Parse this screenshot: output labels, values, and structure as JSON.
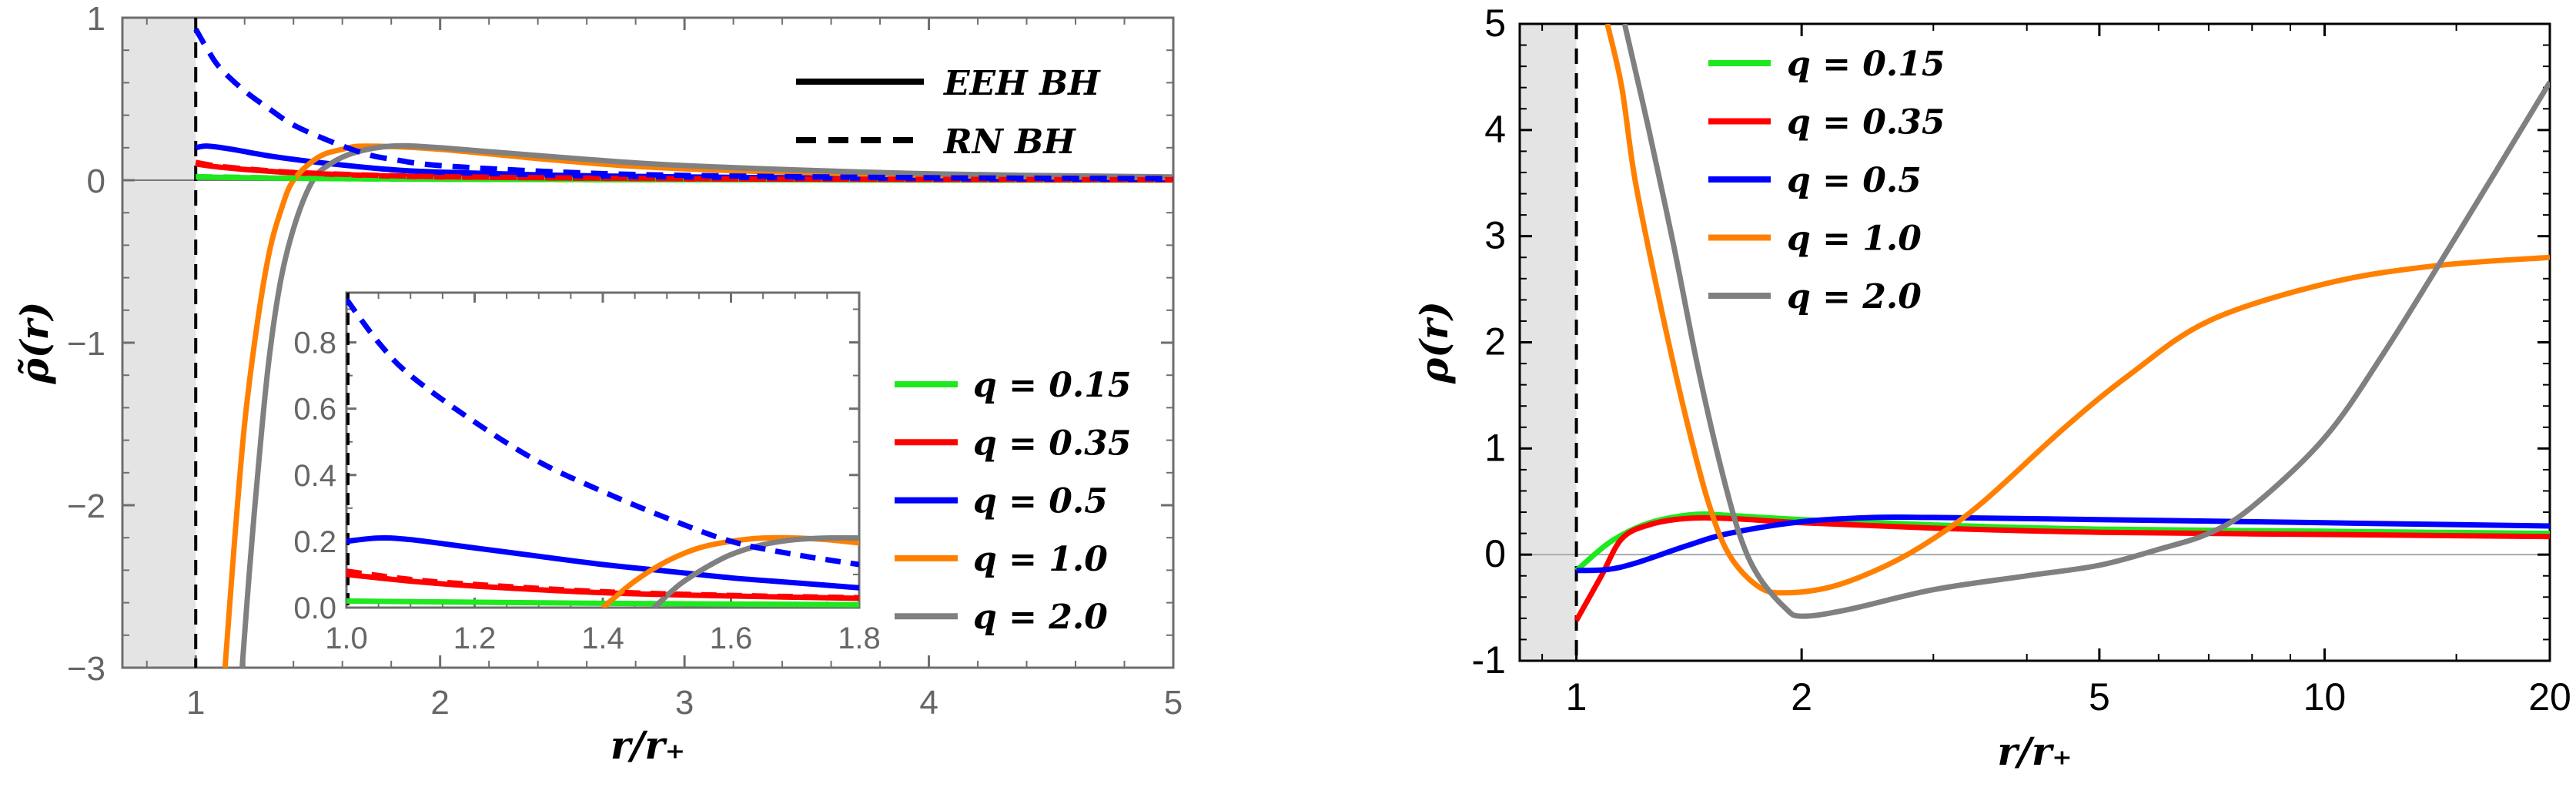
{
  "chart_data": [
    {
      "type": "line",
      "panel": "left",
      "xlabel": "r/r₊",
      "ylabel": "ρ̃(r)",
      "xlim": [
        0.7,
        5
      ],
      "ylim": [
        -3,
        1
      ],
      "x_ticks": [
        "1",
        "2",
        "3",
        "4",
        "5"
      ],
      "y_ticks": [
        "1",
        "0",
        "−1",
        "−2",
        "−3"
      ],
      "shaded_region_x": [
        0.7,
        1
      ],
      "vertical_dashed_line_x": 1,
      "horizontal_reference_y": 0,
      "line_style_legend": [
        {
          "label": "EEH  BH",
          "style": "solid"
        },
        {
          "label": "RN  BH",
          "style": "dashed"
        }
      ],
      "legend": [
        {
          "label": "q = 0.15",
          "color": "#1ee81e"
        },
        {
          "label": "q = 0.35",
          "color": "#ff0000"
        },
        {
          "label": "q = 0.5",
          "color": "#0000ff"
        },
        {
          "label": "q = 1.0",
          "color": "#ff8000"
        },
        {
          "label": "q = 2.0",
          "color": "#808080"
        }
      ],
      "series": [
        {
          "q": "0.15",
          "model": "EEH",
          "style": "solid",
          "color": "#1ee81e",
          "x": [
            1,
            1.2,
            1.5,
            2,
            3,
            4,
            5
          ],
          "y": [
            0.02,
            0.015,
            0.01,
            0.006,
            0.003,
            0.001,
            0.001
          ]
        },
        {
          "q": "0.35",
          "model": "EEH",
          "style": "solid",
          "color": "#ff0000",
          "x": [
            1,
            1.1,
            1.3,
            1.5,
            2,
            3,
            4,
            5
          ],
          "y": [
            0.1,
            0.08,
            0.055,
            0.04,
            0.02,
            0.008,
            0.004,
            0.002
          ]
        },
        {
          "q": "0.5",
          "model": "EEH",
          "style": "solid",
          "color": "#0000ff",
          "x": [
            1,
            1.05,
            1.15,
            1.3,
            1.5,
            1.8,
            2,
            2.5,
            3,
            4,
            5
          ],
          "y": [
            0.2,
            0.21,
            0.19,
            0.15,
            0.11,
            0.065,
            0.05,
            0.03,
            0.02,
            0.01,
            0.006
          ]
        },
        {
          "q": "1.0",
          "model": "EEH",
          "style": "solid",
          "color": "#ff8000",
          "x": [
            1.12,
            1.16,
            1.2,
            1.25,
            1.3,
            1.35,
            1.4,
            1.5,
            1.6,
            1.7,
            2,
            2.5,
            3,
            4,
            5
          ],
          "y": [
            -3,
            -2.2,
            -1.5,
            -0.9,
            -0.45,
            -0.18,
            0,
            0.14,
            0.19,
            0.21,
            0.19,
            0.12,
            0.07,
            0.03,
            0.015
          ]
        },
        {
          "q": "2.0",
          "model": "EEH",
          "style": "solid",
          "color": "#808080",
          "x": [
            1.19,
            1.22,
            1.26,
            1.3,
            1.35,
            1.41,
            1.48,
            1.55,
            1.65,
            1.8,
            2,
            2.5,
            3,
            4,
            5
          ],
          "y": [
            -3,
            -2.4,
            -1.7,
            -1.1,
            -0.6,
            -0.25,
            0,
            0.1,
            0.17,
            0.21,
            0.2,
            0.14,
            0.09,
            0.04,
            0.02
          ]
        },
        {
          "q": "0.15",
          "model": "RN",
          "style": "dashed",
          "color": "#1ee81e",
          "x": [
            1,
            1.5,
            2,
            3,
            5
          ],
          "y": [
            0.022,
            0.011,
            0.006,
            0.003,
            0.001
          ]
        },
        {
          "q": "0.35",
          "model": "RN",
          "style": "dashed",
          "color": "#ff0000",
          "x": [
            1,
            1.1,
            1.3,
            1.5,
            2,
            3,
            4,
            5
          ],
          "y": [
            0.11,
            0.085,
            0.058,
            0.042,
            0.022,
            0.009,
            0.005,
            0.003
          ]
        },
        {
          "q": "0.5",
          "model": "RN",
          "style": "dashed",
          "color": "#0000ff",
          "x": [
            1,
            1.05,
            1.1,
            1.2,
            1.3,
            1.4,
            1.55,
            1.7,
            1.8,
            2,
            2.5,
            3,
            4,
            5
          ],
          "y": [
            0.93,
            0.8,
            0.69,
            0.55,
            0.44,
            0.34,
            0.24,
            0.16,
            0.13,
            0.09,
            0.05,
            0.03,
            0.015,
            0.01
          ]
        }
      ],
      "inset": {
        "xlim": [
          1.0,
          1.8
        ],
        "ylim": [
          0.0,
          0.95
        ],
        "x_ticks": [
          "1.0",
          "1.2",
          "1.4",
          "1.6",
          "1.8"
        ],
        "y_ticks": [
          "0.0",
          "0.2",
          "0.4",
          "0.6",
          "0.8"
        ],
        "series": [
          {
            "q": "0.15",
            "model": "EEH",
            "style": "solid",
            "color": "#1ee81e",
            "x": [
              1,
              1.4,
              1.8
            ],
            "y": [
              0.02,
              0.013,
              0.009
            ]
          },
          {
            "q": "0.35",
            "model": "EEH",
            "style": "solid",
            "color": "#ff0000",
            "x": [
              1,
              1.1,
              1.2,
              1.4,
              1.6,
              1.8
            ],
            "y": [
              0.1,
              0.08,
              0.065,
              0.045,
              0.035,
              0.028
            ]
          },
          {
            "q": "0.5",
            "model": "EEH",
            "style": "solid",
            "color": "#0000ff",
            "x": [
              1,
              1.05,
              1.1,
              1.2,
              1.3,
              1.4,
              1.5,
              1.6,
              1.7,
              1.8
            ],
            "y": [
              0.2,
              0.21,
              0.205,
              0.18,
              0.155,
              0.13,
              0.11,
              0.09,
              0.075,
              0.06
            ]
          },
          {
            "q": "1.0",
            "model": "EEH",
            "style": "solid",
            "color": "#ff8000",
            "x": [
              1.4,
              1.45,
              1.5,
              1.55,
              1.6,
              1.65,
              1.7,
              1.75,
              1.8
            ],
            "y": [
              0,
              0.08,
              0.14,
              0.18,
              0.2,
              0.21,
              0.21,
              0.205,
              0.195
            ]
          },
          {
            "q": "2.0",
            "model": "EEH",
            "style": "solid",
            "color": "#808080",
            "x": [
              1.48,
              1.52,
              1.56,
              1.6,
              1.65,
              1.7,
              1.75,
              1.8
            ],
            "y": [
              0,
              0.07,
              0.12,
              0.16,
              0.19,
              0.205,
              0.21,
              0.21
            ]
          },
          {
            "q": "0.35",
            "model": "RN",
            "style": "dashed",
            "color": "#ff0000",
            "x": [
              1,
              1.1,
              1.2,
              1.4,
              1.6,
              1.8
            ],
            "y": [
              0.11,
              0.085,
              0.07,
              0.048,
              0.037,
              0.03
            ]
          },
          {
            "q": "0.5",
            "model": "RN",
            "style": "dashed",
            "color": "#0000ff",
            "x": [
              1,
              1.05,
              1.1,
              1.2,
              1.3,
              1.4,
              1.5,
              1.6,
              1.7,
              1.8
            ],
            "y": [
              0.93,
              0.8,
              0.7,
              0.56,
              0.44,
              0.35,
              0.27,
              0.2,
              0.16,
              0.13
            ]
          }
        ]
      }
    },
    {
      "type": "line",
      "panel": "right",
      "xlabel": "r/r₊",
      "ylabel": "ρ(r)",
      "x_scale": "log",
      "xlim": [
        0.84,
        20
      ],
      "ylim": [
        -1,
        5
      ],
      "x_ticks": [
        "1",
        "2",
        "5",
        "10",
        "20"
      ],
      "y_ticks": [
        "5",
        "4",
        "3",
        "2",
        "1",
        "0",
        "-1"
      ],
      "shaded_region_x": [
        0.84,
        1
      ],
      "vertical_dashed_line_x": 1,
      "horizontal_reference_y": 0,
      "legend": [
        {
          "label": "q = 0.15",
          "color": "#1ee81e"
        },
        {
          "label": "q = 0.35",
          "color": "#ff0000"
        },
        {
          "label": "q = 0.5",
          "color": "#0000ff"
        },
        {
          "label": "q = 1.0",
          "color": "#ff8000"
        },
        {
          "label": "q = 2.0",
          "color": "#808080"
        }
      ],
      "series": [
        {
          "q": "0.15",
          "color": "#1ee81e",
          "x": [
            1,
            1.1,
            1.2,
            1.3,
            1.45,
            1.6,
            2,
            3,
            5,
            10,
            20
          ],
          "y": [
            -0.15,
            0.1,
            0.25,
            0.33,
            0.38,
            0.37,
            0.33,
            0.28,
            0.24,
            0.22,
            0.2
          ]
        },
        {
          "q": "0.35",
          "color": "#ff0000",
          "x": [
            1,
            1.08,
            1.15,
            1.25,
            1.4,
            1.6,
            2,
            3,
            5,
            10,
            20
          ],
          "y": [
            -0.62,
            -0.2,
            0.15,
            0.28,
            0.34,
            0.34,
            0.3,
            0.25,
            0.21,
            0.19,
            0.17
          ]
        },
        {
          "q": "0.5",
          "color": "#0000ff",
          "x": [
            1,
            1.1,
            1.2,
            1.4,
            1.6,
            2,
            2.5,
            3,
            5,
            10,
            20
          ],
          "y": [
            -0.15,
            -0.14,
            -0.08,
            0.08,
            0.2,
            0.31,
            0.35,
            0.35,
            0.33,
            0.3,
            0.27
          ]
        },
        {
          "q": "1.0",
          "color": "#ff8000",
          "x": [
            1.1,
            1.15,
            1.2,
            1.3,
            1.4,
            1.5,
            1.6,
            1.75,
            1.9,
            2.2,
            2.6,
            3,
            3.5,
            4.5,
            5.5,
            7,
            10,
            14,
            20
          ],
          "y": [
            5,
            4.4,
            3.5,
            2.3,
            1.3,
            0.5,
            0,
            -0.3,
            -0.36,
            -0.3,
            -0.1,
            0.15,
            0.5,
            1.2,
            1.7,
            2.2,
            2.55,
            2.72,
            2.8
          ]
        },
        {
          "q": "2.0",
          "color": "#808080",
          "x": [
            1.16,
            1.25,
            1.35,
            1.45,
            1.55,
            1.65,
            1.75,
            1.9,
            2,
            2.3,
            3,
            4,
            5,
            6,
            7,
            8,
            10,
            12,
            15,
            20
          ],
          "y": [
            5,
            4,
            2.9,
            1.8,
            0.9,
            0.2,
            -0.2,
            -0.5,
            -0.58,
            -0.52,
            -0.33,
            -0.2,
            -0.1,
            0.05,
            0.2,
            0.45,
            1.1,
            1.9,
            3.0,
            4.45
          ]
        }
      ]
    }
  ]
}
